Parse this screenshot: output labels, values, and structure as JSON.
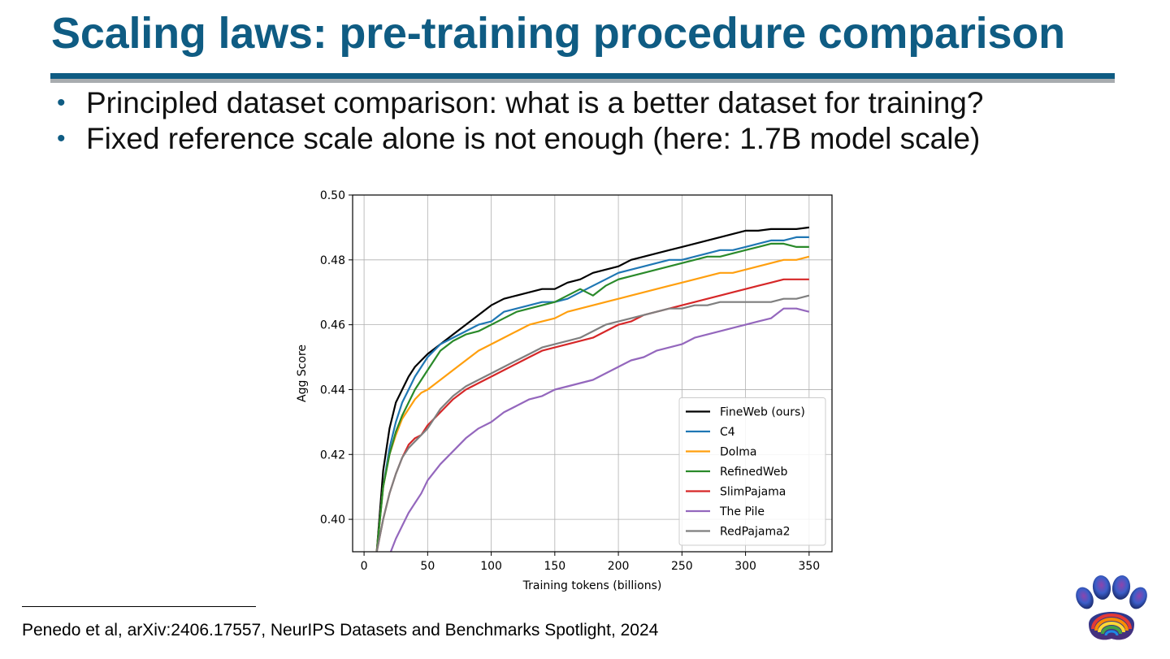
{
  "slide": {
    "title": "Scaling laws: pre-training procedure comparison",
    "bullets": [
      "Principled dataset comparison: what is a better dataset for training?",
      "Fixed reference scale alone is not enough (here: 1.7B model scale)"
    ],
    "footnote": "Penedo et al, arXiv:2406.17557, NeurIPS Datasets and Benchmarks Spotlight, 2024",
    "logo_icon": "rainbow-paw-icon"
  },
  "chart_data": {
    "type": "line",
    "title": "",
    "xlabel": "Training tokens (billions)",
    "ylabel": "Agg Score",
    "xlim": [
      -9,
      368
    ],
    "ylim": [
      0.39,
      0.5
    ],
    "xticks": [
      0,
      50,
      100,
      150,
      200,
      250,
      300,
      350
    ],
    "yticks": [
      0.4,
      0.42,
      0.44,
      0.46,
      0.48,
      0.5
    ],
    "ytick_labels": [
      "0.40",
      "0.42",
      "0.44",
      "0.46",
      "0.48",
      "0.50"
    ],
    "grid": true,
    "legend_position": "lower-right",
    "series": [
      {
        "name": "FineWeb (ours)",
        "color": "#000000",
        "x": [
          10,
          15,
          20,
          25,
          30,
          35,
          40,
          45,
          50,
          60,
          70,
          80,
          90,
          100,
          110,
          120,
          130,
          140,
          150,
          160,
          170,
          180,
          190,
          200,
          210,
          220,
          230,
          240,
          250,
          260,
          270,
          280,
          290,
          300,
          310,
          320,
          330,
          340,
          350
        ],
        "y": [
          0.39,
          0.415,
          0.428,
          0.436,
          0.44,
          0.444,
          0.447,
          0.449,
          0.451,
          0.454,
          0.457,
          0.46,
          0.463,
          0.466,
          0.468,
          0.469,
          0.47,
          0.471,
          0.471,
          0.473,
          0.474,
          0.476,
          0.477,
          0.478,
          0.48,
          0.481,
          0.482,
          0.483,
          0.484,
          0.485,
          0.486,
          0.487,
          0.488,
          0.489,
          0.489,
          0.4895,
          0.4895,
          0.4895,
          0.49
        ]
      },
      {
        "name": "C4",
        "color": "#1f77b4",
        "x": [
          10,
          15,
          20,
          25,
          30,
          35,
          40,
          45,
          50,
          60,
          70,
          80,
          90,
          100,
          110,
          120,
          130,
          140,
          150,
          160,
          170,
          180,
          190,
          200,
          210,
          220,
          230,
          240,
          250,
          260,
          270,
          280,
          290,
          300,
          310,
          320,
          330,
          340,
          350
        ],
        "y": [
          0.39,
          0.41,
          0.422,
          0.43,
          0.436,
          0.44,
          0.444,
          0.447,
          0.45,
          0.454,
          0.456,
          0.458,
          0.46,
          0.461,
          0.464,
          0.465,
          0.466,
          0.467,
          0.467,
          0.468,
          0.47,
          0.472,
          0.474,
          0.476,
          0.477,
          0.478,
          0.479,
          0.48,
          0.48,
          0.481,
          0.482,
          0.483,
          0.483,
          0.484,
          0.485,
          0.486,
          0.486,
          0.487,
          0.487
        ]
      },
      {
        "name": "Dolma",
        "color": "#ff9f0e",
        "x": [
          10,
          15,
          20,
          25,
          30,
          35,
          40,
          45,
          50,
          60,
          70,
          80,
          90,
          100,
          110,
          120,
          130,
          140,
          150,
          160,
          170,
          180,
          190,
          200,
          210,
          220,
          230,
          240,
          250,
          260,
          270,
          280,
          290,
          300,
          310,
          320,
          330,
          340,
          350
        ],
        "y": [
          0.39,
          0.41,
          0.42,
          0.426,
          0.431,
          0.434,
          0.437,
          0.439,
          0.44,
          0.443,
          0.446,
          0.449,
          0.452,
          0.454,
          0.456,
          0.458,
          0.46,
          0.461,
          0.462,
          0.464,
          0.465,
          0.466,
          0.467,
          0.468,
          0.469,
          0.47,
          0.471,
          0.472,
          0.473,
          0.474,
          0.475,
          0.476,
          0.476,
          0.477,
          0.478,
          0.479,
          0.48,
          0.48,
          0.481
        ]
      },
      {
        "name": "RefinedWeb",
        "color": "#2a8a2a",
        "x": [
          10,
          15,
          20,
          25,
          30,
          35,
          40,
          45,
          50,
          60,
          70,
          80,
          90,
          100,
          110,
          120,
          130,
          140,
          150,
          160,
          170,
          180,
          190,
          200,
          210,
          220,
          230,
          240,
          250,
          260,
          270,
          280,
          290,
          300,
          310,
          320,
          330,
          340,
          350
        ],
        "y": [
          0.39,
          0.41,
          0.42,
          0.427,
          0.432,
          0.436,
          0.44,
          0.443,
          0.446,
          0.452,
          0.455,
          0.457,
          0.458,
          0.46,
          0.462,
          0.464,
          0.465,
          0.466,
          0.467,
          0.469,
          0.471,
          0.469,
          0.472,
          0.474,
          0.475,
          0.476,
          0.477,
          0.478,
          0.479,
          0.48,
          0.481,
          0.481,
          0.482,
          0.483,
          0.484,
          0.485,
          0.485,
          0.484,
          0.484
        ]
      },
      {
        "name": "SlimPajama",
        "color": "#d62728",
        "x": [
          10,
          15,
          20,
          25,
          30,
          35,
          40,
          45,
          50,
          60,
          70,
          80,
          90,
          100,
          110,
          120,
          130,
          140,
          150,
          160,
          170,
          180,
          190,
          200,
          210,
          220,
          230,
          240,
          250,
          260,
          270,
          280,
          290,
          300,
          310,
          320,
          330,
          340,
          350
        ],
        "y": [
          0.39,
          0.4,
          0.408,
          0.414,
          0.419,
          0.423,
          0.425,
          0.426,
          0.429,
          0.433,
          0.437,
          0.44,
          0.442,
          0.444,
          0.446,
          0.448,
          0.45,
          0.452,
          0.453,
          0.454,
          0.455,
          0.456,
          0.458,
          0.46,
          0.461,
          0.463,
          0.464,
          0.465,
          0.466,
          0.467,
          0.468,
          0.469,
          0.47,
          0.471,
          0.472,
          0.473,
          0.474,
          0.474,
          0.474
        ]
      },
      {
        "name": "The Pile",
        "color": "#9467bd",
        "x": [
          10,
          15,
          20,
          25,
          30,
          35,
          40,
          45,
          50,
          60,
          70,
          80,
          90,
          100,
          110,
          120,
          130,
          140,
          150,
          160,
          170,
          180,
          190,
          200,
          210,
          220,
          230,
          240,
          250,
          260,
          270,
          280,
          290,
          300,
          310,
          320,
          330,
          340,
          350
        ],
        "y": [
          0.382,
          0.385,
          0.389,
          0.394,
          0.398,
          0.402,
          0.405,
          0.408,
          0.412,
          0.417,
          0.421,
          0.425,
          0.428,
          0.43,
          0.433,
          0.435,
          0.437,
          0.438,
          0.44,
          0.441,
          0.442,
          0.443,
          0.445,
          0.447,
          0.449,
          0.45,
          0.452,
          0.453,
          0.454,
          0.456,
          0.457,
          0.458,
          0.459,
          0.46,
          0.461,
          0.462,
          0.465,
          0.465,
          0.464
        ]
      },
      {
        "name": "RedPajama2",
        "color": "#7f7f7f",
        "x": [
          10,
          15,
          20,
          25,
          30,
          35,
          40,
          45,
          50,
          60,
          70,
          80,
          90,
          100,
          110,
          120,
          130,
          140,
          150,
          160,
          170,
          180,
          190,
          200,
          210,
          220,
          230,
          240,
          250,
          260,
          270,
          280,
          290,
          300,
          310,
          320,
          330,
          340,
          350
        ],
        "y": [
          0.39,
          0.4,
          0.408,
          0.414,
          0.419,
          0.422,
          0.424,
          0.426,
          0.428,
          0.434,
          0.438,
          0.441,
          0.443,
          0.445,
          0.447,
          0.449,
          0.451,
          0.453,
          0.454,
          0.455,
          0.456,
          0.458,
          0.46,
          0.461,
          0.462,
          0.463,
          0.464,
          0.465,
          0.465,
          0.466,
          0.466,
          0.467,
          0.467,
          0.467,
          0.467,
          0.467,
          0.468,
          0.468,
          0.469
        ]
      }
    ]
  }
}
